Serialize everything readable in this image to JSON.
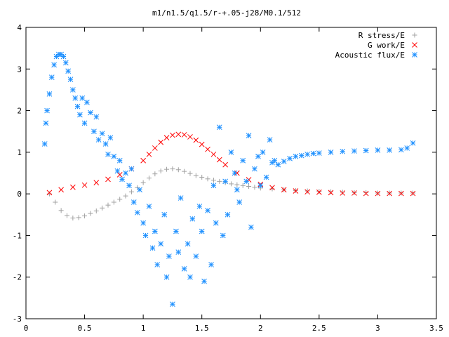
{
  "chart_data": {
    "type": "scatter",
    "title": "m1/n1.5/q1.5/r-+.05-j28/M0.1/512",
    "xlabel": "",
    "ylabel": "",
    "xlim": [
      0,
      3.5
    ],
    "ylim": [
      -3,
      4
    ],
    "xticks": [
      "0",
      "0.5",
      "1",
      "1.5",
      "2",
      "2.5",
      "3",
      "3.5"
    ],
    "yticks": [
      "-3",
      "-2",
      "-1",
      "0",
      "1",
      "2",
      "3",
      "4"
    ],
    "grid": false,
    "legend_position": "top-right",
    "series": [
      {
        "name": "R stress/E",
        "marker": "+",
        "color": "#a0a0a0",
        "x": [
          0.2,
          0.25,
          0.3,
          0.35,
          0.4,
          0.45,
          0.5,
          0.55,
          0.6,
          0.65,
          0.7,
          0.75,
          0.8,
          0.85,
          0.9,
          0.95,
          1.0,
          1.05,
          1.1,
          1.15,
          1.2,
          1.25,
          1.3,
          1.35,
          1.4,
          1.45,
          1.5,
          1.55,
          1.6,
          1.65,
          1.7,
          1.75,
          1.8,
          1.85,
          1.9,
          1.95,
          2.0,
          2.1,
          2.2,
          2.3,
          2.4,
          2.5,
          2.6,
          2.7,
          2.8,
          2.9,
          3.0,
          3.1,
          3.2,
          3.3
        ],
        "y": [
          0.0,
          -0.2,
          -0.4,
          -0.52,
          -0.58,
          -0.57,
          -0.53,
          -0.47,
          -0.41,
          -0.34,
          -0.27,
          -0.2,
          -0.13,
          -0.05,
          0.05,
          0.15,
          0.27,
          0.38,
          0.48,
          0.55,
          0.59,
          0.6,
          0.58,
          0.54,
          0.49,
          0.44,
          0.4,
          0.36,
          0.33,
          0.3,
          0.27,
          0.24,
          0.22,
          0.2,
          0.18,
          0.16,
          0.14,
          0.12,
          0.1,
          0.08,
          0.07,
          0.06,
          0.05,
          0.04,
          0.03,
          0.03,
          0.02,
          0.02,
          0.02,
          0.02
        ]
      },
      {
        "name": "G work/E",
        "marker": "x",
        "color": "#ff0000",
        "x": [
          0.2,
          0.3,
          0.4,
          0.5,
          0.6,
          0.7,
          0.8,
          0.9,
          1.0,
          1.05,
          1.1,
          1.15,
          1.2,
          1.25,
          1.3,
          1.35,
          1.4,
          1.45,
          1.5,
          1.55,
          1.6,
          1.65,
          1.7,
          1.8,
          1.9,
          2.0,
          2.1,
          2.2,
          2.3,
          2.4,
          2.5,
          2.6,
          2.7,
          2.8,
          2.9,
          3.0,
          3.1,
          3.2,
          3.3
        ],
        "y": [
          0.03,
          0.1,
          0.16,
          0.21,
          0.27,
          0.35,
          0.46,
          0.6,
          0.8,
          0.95,
          1.1,
          1.24,
          1.35,
          1.41,
          1.43,
          1.42,
          1.37,
          1.29,
          1.19,
          1.07,
          0.95,
          0.82,
          0.7,
          0.5,
          0.34,
          0.23,
          0.15,
          0.1,
          0.07,
          0.05,
          0.04,
          0.03,
          0.02,
          0.02,
          0.01,
          0.01,
          0.01,
          0.01,
          0.01
        ]
      },
      {
        "name": "Acoustic flux/E",
        "marker": "*",
        "color": "#1e90ff",
        "x": [
          0.16,
          0.17,
          0.18,
          0.2,
          0.22,
          0.24,
          0.26,
          0.28,
          0.3,
          0.32,
          0.34,
          0.36,
          0.38,
          0.4,
          0.42,
          0.44,
          0.46,
          0.48,
          0.5,
          0.52,
          0.55,
          0.58,
          0.6,
          0.62,
          0.65,
          0.68,
          0.7,
          0.72,
          0.75,
          0.78,
          0.8,
          0.82,
          0.85,
          0.88,
          0.9,
          0.92,
          0.95,
          0.97,
          1.0,
          1.02,
          1.05,
          1.08,
          1.1,
          1.12,
          1.15,
          1.18,
          1.2,
          1.22,
          1.25,
          1.28,
          1.3,
          1.32,
          1.35,
          1.38,
          1.4,
          1.42,
          1.45,
          1.48,
          1.5,
          1.52,
          1.55,
          1.58,
          1.6,
          1.62,
          1.65,
          1.68,
          1.7,
          1.72,
          1.75,
          1.78,
          1.8,
          1.82,
          1.85,
          1.88,
          1.9,
          1.92,
          1.95,
          1.98,
          2.0,
          2.02,
          2.05,
          2.08,
          2.1,
          2.12,
          2.15,
          2.2,
          2.25,
          2.3,
          2.35,
          2.4,
          2.45,
          2.5,
          2.6,
          2.7,
          2.8,
          2.9,
          3.0,
          3.1,
          3.2,
          3.25,
          3.3
        ],
        "y": [
          1.2,
          1.7,
          2.0,
          2.4,
          2.8,
          3.1,
          3.3,
          3.35,
          3.35,
          3.3,
          3.15,
          2.95,
          2.75,
          2.5,
          2.3,
          2.1,
          1.9,
          2.3,
          1.7,
          2.2,
          1.95,
          1.5,
          1.85,
          1.3,
          1.45,
          1.2,
          0.95,
          1.35,
          0.9,
          0.55,
          0.8,
          0.35,
          0.5,
          0.2,
          0.6,
          -0.2,
          -0.45,
          0.1,
          -0.7,
          -1.0,
          -0.3,
          -1.3,
          -0.9,
          -1.7,
          -1.2,
          -0.5,
          -2.0,
          -1.5,
          -2.65,
          -0.9,
          -1.4,
          -0.1,
          -1.8,
          -1.2,
          -2.0,
          -0.6,
          -1.5,
          -0.3,
          -0.9,
          -2.1,
          -0.4,
          -1.7,
          0.2,
          -0.7,
          1.6,
          -1.0,
          0.3,
          -0.5,
          1.0,
          0.5,
          0.1,
          -0.2,
          0.8,
          0.3,
          1.4,
          -0.8,
          0.6,
          0.9,
          0.2,
          1.0,
          0.4,
          1.3,
          0.75,
          0.8,
          0.7,
          0.78,
          0.85,
          0.9,
          0.92,
          0.95,
          0.97,
          0.98,
          1.0,
          1.02,
          1.03,
          1.04,
          1.05,
          1.05,
          1.06,
          1.1,
          1.22
        ]
      }
    ]
  }
}
